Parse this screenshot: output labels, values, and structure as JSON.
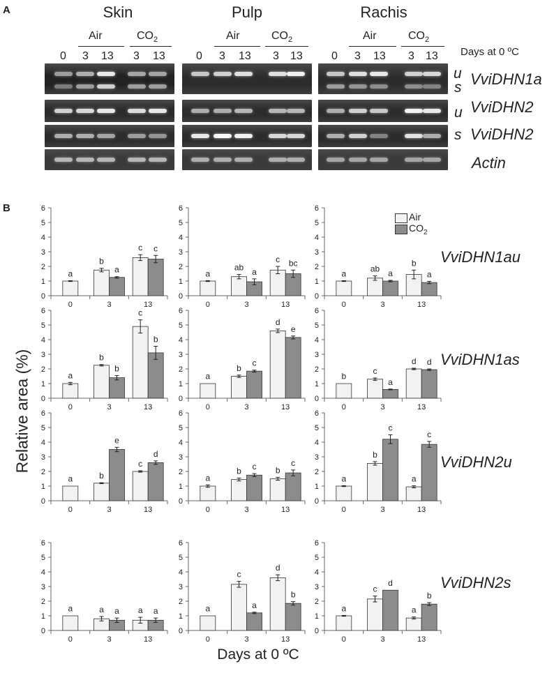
{
  "panel_a": {
    "label": "A",
    "tissues": [
      "Skin",
      "Pulp",
      "Rachis"
    ],
    "treatments": [
      "Air",
      "CO"
    ],
    "co2_subscript": "2",
    "lanes": [
      "0",
      "3",
      "13",
      "3",
      "13"
    ],
    "lane_axis_label": "Days at 0 ºC",
    "rows": [
      {
        "gene": "VviDHN1a",
        "markers": [
          "u",
          "s"
        ]
      },
      {
        "gene": "VviDHN2",
        "markers": [
          "u"
        ]
      },
      {
        "gene": "VviDHN2",
        "markers": [
          "s"
        ]
      },
      {
        "gene": "Actin",
        "markers": []
      }
    ],
    "band_intensity": [
      [
        [
          [
            0.45,
            0.55,
            0.9,
            0.5,
            0.5
          ],
          [
            0.25,
            0.45,
            0.75,
            0.45,
            0.45
          ]
        ],
        [
          [
            0.75,
            0.8,
            0.9,
            0.82,
            0.9
          ]
        ],
        [
          [
            0.55,
            0.55,
            0.5,
            0.45,
            0.4
          ]
        ],
        [
          [
            0.6,
            0.6,
            0.6,
            0.6,
            0.6
          ]
        ]
      ],
      [
        [
          [
            0.7,
            0.75,
            0.85,
            0.85,
            0.95
          ],
          []
        ],
        [
          [
            0.55,
            0.55,
            0.6,
            0.6,
            0.6
          ]
        ],
        [
          [
            0.9,
            1.0,
            0.95,
            0.8,
            0.8
          ]
        ],
        [
          [
            0.55,
            0.55,
            0.55,
            0.55,
            0.55
          ]
        ]
      ],
      [
        [
          [
            0.7,
            0.85,
            0.9,
            0.75,
            0.8
          ],
          [
            0.45,
            0.4,
            0.35,
            0.35,
            0.3
          ]
        ],
        [
          [
            0.55,
            0.75,
            0.7,
            0.95,
            0.9
          ]
        ],
        [
          [
            0.55,
            0.75,
            0.3,
            0.85,
            0.55
          ]
        ],
        [
          [
            0.5,
            0.5,
            0.5,
            0.5,
            0.5
          ]
        ]
      ]
    ]
  },
  "panel_b": {
    "label": "B",
    "ylabel": "Relative area (%)",
    "xlabel": "Days at 0 ºC",
    "legend": {
      "air": "Air",
      "co2": "CO",
      "co2_sub": "2"
    }
  },
  "chart_data": {
    "type": "bar",
    "categories": [
      "0",
      "3",
      "13"
    ],
    "series_names": [
      "Air",
      "CO2"
    ],
    "ylim": [
      0,
      6
    ],
    "yticks": [
      0,
      1,
      2,
      3,
      4,
      5,
      6
    ],
    "grid": false,
    "legend_position": "top-right of Pulp VviDHN1au panel",
    "colors": {
      "air": "#f2f2f2",
      "co2": "#8c8c8c",
      "edge": "#333333"
    },
    "rows": [
      {
        "gene": "VviDHN1au",
        "panels": [
          {
            "tissue": "Skin",
            "day0": {
              "value": 1.0,
              "err": 0.03,
              "letter": "a"
            },
            "air": [
              {
                "value": 1.75,
                "err": 0.12,
                "letter": "b"
              },
              {
                "value": 2.6,
                "err": 0.2,
                "letter": "c"
              }
            ],
            "co2": [
              {
                "value": 1.25,
                "err": 0.05,
                "letter": "a"
              },
              {
                "value": 2.5,
                "err": 0.25,
                "letter": "c"
              }
            ]
          },
          {
            "tissue": "Pulp",
            "day0": {
              "value": 1.0,
              "err": 0.03,
              "letter": "a"
            },
            "air": [
              {
                "value": 1.3,
                "err": 0.15,
                "letter": "ab"
              },
              {
                "value": 1.75,
                "err": 0.25,
                "letter": "c"
              }
            ],
            "co2": [
              {
                "value": 0.95,
                "err": 0.2,
                "letter": "a"
              },
              {
                "value": 1.5,
                "err": 0.25,
                "letter": "bc"
              }
            ]
          },
          {
            "tissue": "Rachis",
            "day0": {
              "value": 1.0,
              "err": 0.03,
              "letter": "a"
            },
            "air": [
              {
                "value": 1.2,
                "err": 0.15,
                "letter": "ab"
              },
              {
                "value": 1.45,
                "err": 0.3,
                "letter": "b"
              }
            ],
            "co2": [
              {
                "value": 1.0,
                "err": 0.05,
                "letter": "a"
              },
              {
                "value": 0.9,
                "err": 0.08,
                "letter": "a"
              }
            ]
          }
        ]
      },
      {
        "gene": "VviDHN1as",
        "panels": [
          {
            "tissue": "Skin",
            "day0": {
              "value": 1.0,
              "err": 0.08,
              "letter": "a"
            },
            "air": [
              {
                "value": 2.25,
                "err": 0.05,
                "letter": "b"
              },
              {
                "value": 4.9,
                "err": 0.45,
                "letter": "c"
              }
            ],
            "co2": [
              {
                "value": 1.4,
                "err": 0.15,
                "letter": "b"
              },
              {
                "value": 3.1,
                "err": 0.45,
                "letter": "b"
              }
            ]
          },
          {
            "tissue": "Pulp",
            "day0": {
              "value": 1.0,
              "err": 0.02,
              "letter": "a"
            },
            "air": [
              {
                "value": 1.5,
                "err": 0.08,
                "letter": "b"
              },
              {
                "value": 4.6,
                "err": 0.12,
                "letter": "d"
              }
            ],
            "co2": [
              {
                "value": 1.85,
                "err": 0.07,
                "letter": "c"
              },
              {
                "value": 4.15,
                "err": 0.1,
                "letter": "e"
              }
            ]
          },
          {
            "tissue": "Rachis",
            "day0": {
              "value": 1.0,
              "err": 0.02,
              "letter": "b"
            },
            "air": [
              {
                "value": 1.3,
                "err": 0.08,
                "letter": "c"
              },
              {
                "value": 2.0,
                "err": 0.05,
                "letter": "d"
              }
            ],
            "co2": [
              {
                "value": 0.6,
                "err": 0.03,
                "letter": "a"
              },
              {
                "value": 1.95,
                "err": 0.05,
                "letter": "d"
              }
            ]
          }
        ]
      },
      {
        "gene": "VviDHN2u",
        "panels": [
          {
            "tissue": "Skin",
            "day0": {
              "value": 1.0,
              "err": 0.02,
              "letter": "a"
            },
            "air": [
              {
                "value": 1.2,
                "err": 0.03,
                "letter": "b"
              },
              {
                "value": 2.0,
                "err": 0.05,
                "letter": "c"
              }
            ],
            "co2": [
              {
                "value": 3.5,
                "err": 0.15,
                "letter": "e"
              },
              {
                "value": 2.6,
                "err": 0.12,
                "letter": "d"
              }
            ]
          },
          {
            "tissue": "Pulp",
            "day0": {
              "value": 1.0,
              "err": 0.08,
              "letter": "a"
            },
            "air": [
              {
                "value": 1.45,
                "err": 0.1,
                "letter": "b"
              },
              {
                "value": 1.5,
                "err": 0.1,
                "letter": "b"
              }
            ],
            "co2": [
              {
                "value": 1.75,
                "err": 0.1,
                "letter": "c"
              },
              {
                "value": 1.9,
                "err": 0.2,
                "letter": "c"
              }
            ]
          },
          {
            "tissue": "Rachis",
            "day0": {
              "value": 1.0,
              "err": 0.03,
              "letter": "a"
            },
            "air": [
              {
                "value": 2.55,
                "err": 0.12,
                "letter": "b"
              },
              {
                "value": 0.95,
                "err": 0.07,
                "letter": "a"
              }
            ],
            "co2": [
              {
                "value": 4.2,
                "err": 0.3,
                "letter": "c"
              },
              {
                "value": 3.85,
                "err": 0.2,
                "letter": "c"
              }
            ]
          }
        ]
      },
      {
        "gene": "VviDHN2s",
        "panels": [
          {
            "tissue": "Skin",
            "day0": {
              "value": 1.0,
              "err": 0.02,
              "letter": "a"
            },
            "air": [
              {
                "value": 0.8,
                "err": 0.15,
                "letter": "a"
              },
              {
                "value": 0.7,
                "err": 0.2,
                "letter": "a"
              }
            ],
            "co2": [
              {
                "value": 0.7,
                "err": 0.15,
                "letter": "a"
              },
              {
                "value": 0.7,
                "err": 0.15,
                "letter": "a"
              }
            ]
          },
          {
            "tissue": "Pulp",
            "day0": {
              "value": 1.0,
              "err": 0.02,
              "letter": "a"
            },
            "air": [
              {
                "value": 3.15,
                "err": 0.2,
                "letter": "c"
              },
              {
                "value": 3.6,
                "err": 0.2,
                "letter": "d"
              }
            ],
            "co2": [
              {
                "value": 1.2,
                "err": 0.05,
                "letter": "a"
              },
              {
                "value": 1.85,
                "err": 0.12,
                "letter": "b"
              }
            ]
          },
          {
            "tissue": "Rachis",
            "day0": {
              "value": 1.0,
              "err": 0.03,
              "letter": "a"
            },
            "air": [
              {
                "value": 2.15,
                "err": 0.2,
                "letter": "c"
              },
              {
                "value": 0.85,
                "err": 0.07,
                "letter": "a"
              }
            ],
            "co2": [
              {
                "value": 2.75,
                "err": 0.02,
                "letter": "d"
              },
              {
                "value": 1.8,
                "err": 0.1,
                "letter": "b"
              }
            ]
          }
        ]
      }
    ]
  }
}
